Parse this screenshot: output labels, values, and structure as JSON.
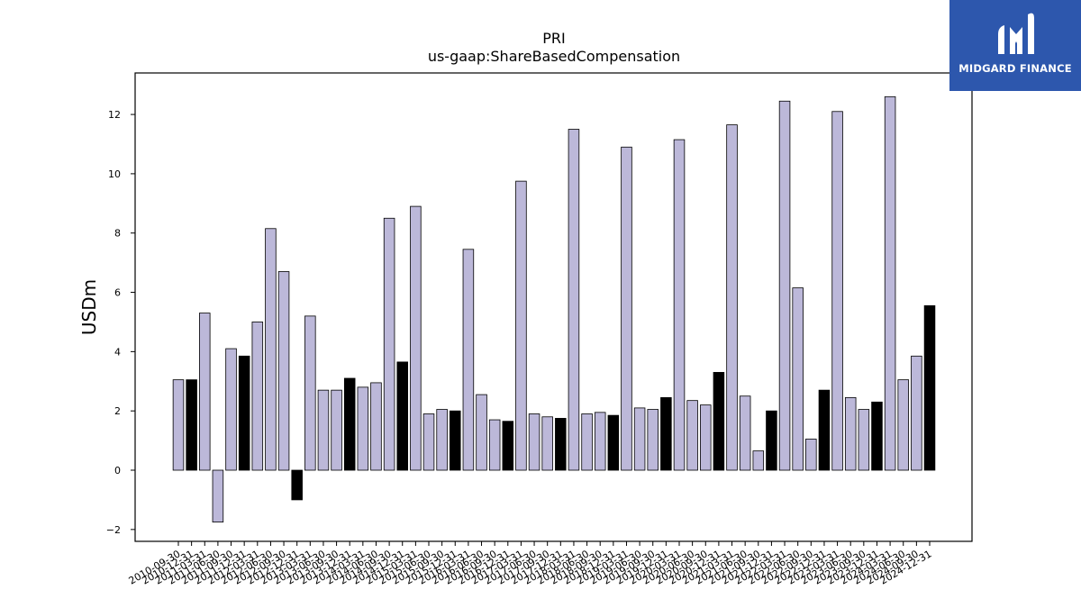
{
  "chart_data": {
    "type": "bar",
    "title": "PRI",
    "subtitle": "us-gaap:ShareBasedCompensation",
    "ylabel": "USDm",
    "ylim": [
      -2.4,
      13.4
    ],
    "yticks": [
      -2,
      0,
      2,
      4,
      6,
      8,
      10,
      12
    ],
    "ytick_labels": [
      "−2",
      "0",
      "2",
      "4",
      "6",
      "8",
      "10",
      "12"
    ],
    "categories": [
      "2010-09-30",
      "2010-12-31",
      "2011-03-31",
      "2011-06-30",
      "2011-09-30",
      "2011-12-31",
      "2012-03-31",
      "2012-06-30",
      "2012-09-30",
      "2012-12-31",
      "2013-03-31",
      "2013-06-30",
      "2013-09-30",
      "2013-12-31",
      "2014-03-31",
      "2014-06-30",
      "2014-09-30",
      "2014-12-31",
      "2015-03-31",
      "2015-06-30",
      "2015-09-30",
      "2015-12-31",
      "2016-03-31",
      "2016-06-30",
      "2016-09-30",
      "2016-12-31",
      "2017-03-31",
      "2017-06-30",
      "2017-09-30",
      "2017-12-31",
      "2018-03-31",
      "2018-06-30",
      "2018-09-30",
      "2018-12-31",
      "2019-03-31",
      "2019-06-30",
      "2019-09-30",
      "2019-12-31",
      "2020-03-31",
      "2020-06-30",
      "2020-09-30",
      "2020-12-31",
      "2021-03-31",
      "2021-06-30",
      "2021-09-30",
      "2021-12-31",
      "2022-03-31",
      "2022-06-30",
      "2022-09-30",
      "2022-12-31",
      "2023-03-31",
      "2023-06-30",
      "2023-09-30",
      "2023-12-31",
      "2024-03-31",
      "2024-06-30",
      "2024-09-30",
      "2024-12-31"
    ],
    "values": [
      3.05,
      3.05,
      5.3,
      -1.75,
      4.1,
      3.85,
      5.0,
      8.15,
      6.7,
      -1.0,
      5.2,
      2.7,
      2.7,
      3.1,
      2.8,
      2.95,
      8.5,
      3.65,
      8.9,
      1.9,
      2.05,
      2.0,
      7.45,
      2.55,
      1.7,
      1.65,
      9.75,
      1.9,
      1.8,
      1.75,
      11.5,
      1.9,
      1.95,
      1.85,
      10.9,
      2.1,
      2.05,
      2.45,
      11.15,
      2.35,
      2.2,
      3.3,
      11.65,
      2.5,
      0.65,
      2.0,
      12.45,
      6.15,
      1.05,
      2.7,
      12.1,
      2.45,
      2.05,
      2.3,
      12.6,
      3.05,
      3.85,
      5.55
    ],
    "colors": {
      "quarter_bar": "#bcb8d9",
      "year_end_bar": "#000000",
      "edge": "#000000"
    },
    "legend": "none",
    "grid": false
  },
  "logo": {
    "text": "MIDGARD FINANCE",
    "background": "#2d57ad"
  }
}
